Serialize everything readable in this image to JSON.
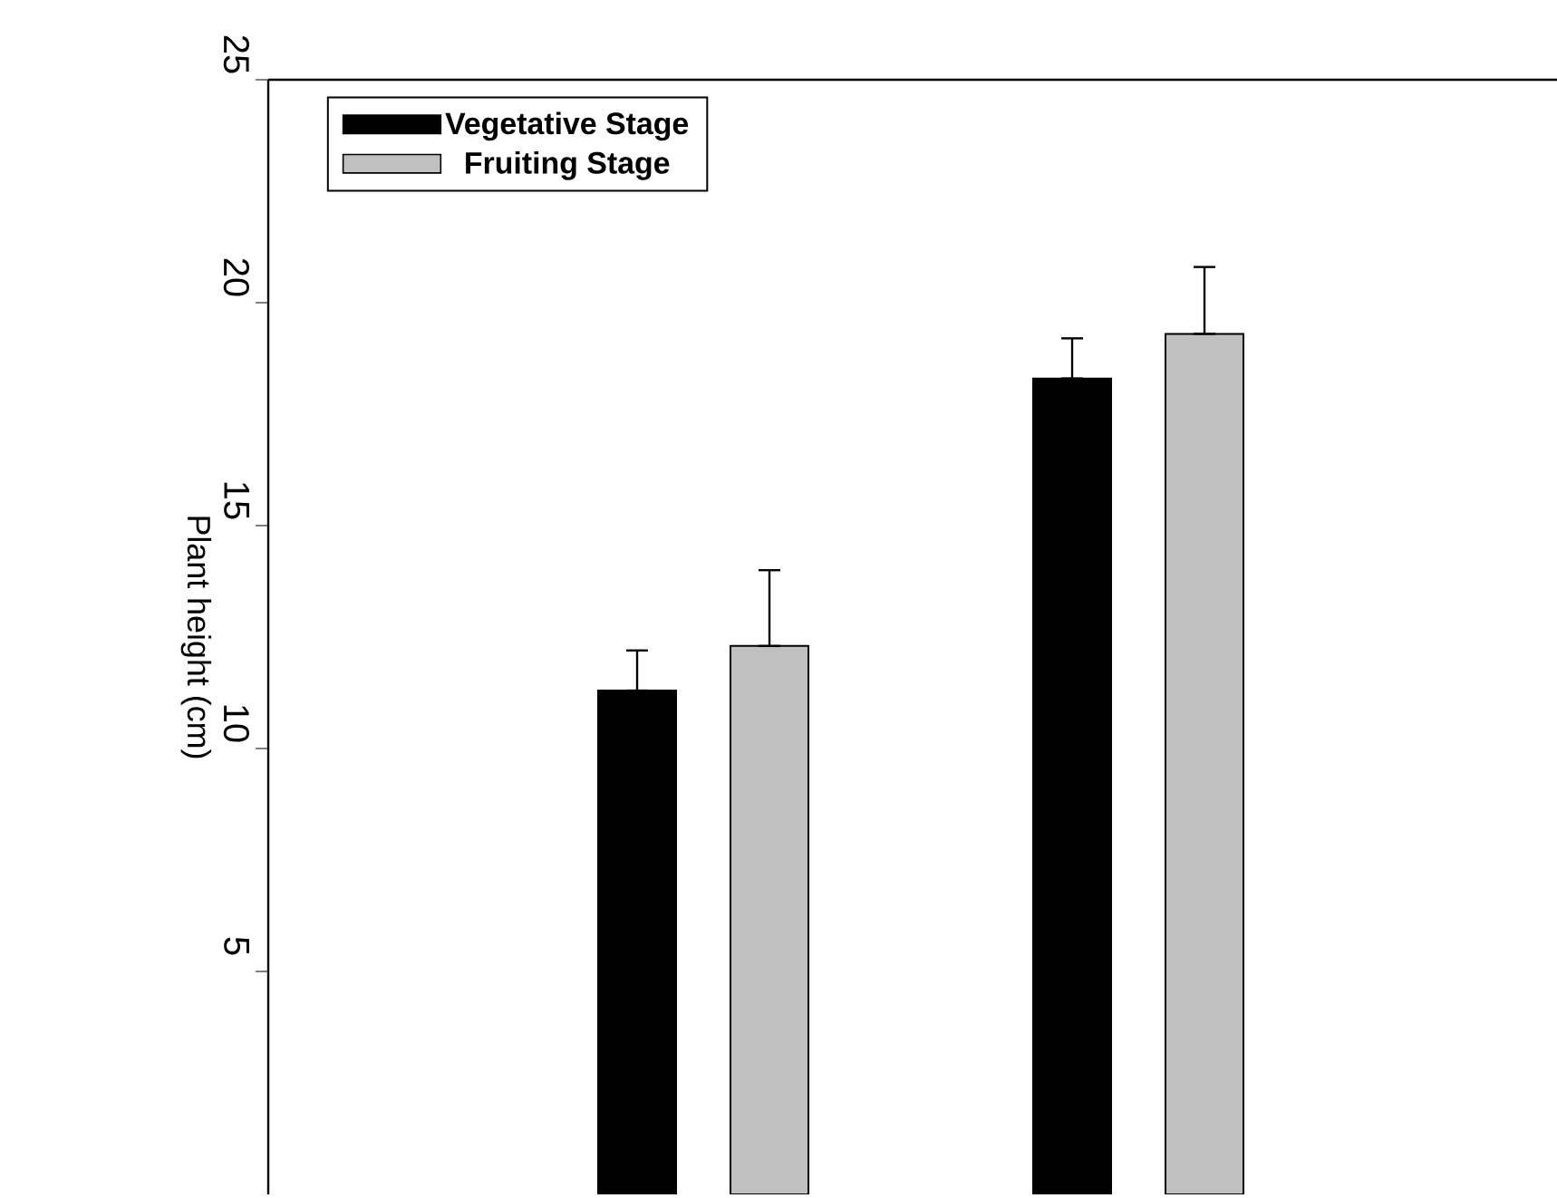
{
  "chart_data": {
    "type": "bar",
    "ylabel": "Plant height (cm)",
    "categories": [
      null,
      null
    ],
    "series": [
      {
        "name": "Vegetative Stage",
        "color": "#000000",
        "values": [
          11.3,
          18.3
        ],
        "errors": [
          [
            11.3,
            12.2
          ],
          [
            18.3,
            19.2
          ]
        ]
      },
      {
        "name": "Fruiting Stage",
        "color": "#c0c0c0",
        "values": [
          12.3,
          19.3
        ],
        "errors": [
          [
            12.3,
            14.0
          ],
          [
            19.3,
            20.8
          ]
        ]
      }
    ],
    "ylim": [
      0,
      25
    ],
    "yticks": [
      5,
      10,
      15,
      20,
      25
    ],
    "legend": "top left"
  }
}
